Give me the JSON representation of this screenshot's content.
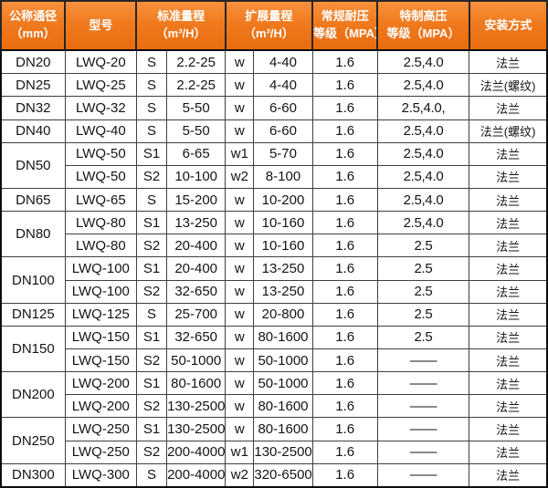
{
  "colors": {
    "header_orange": "#f07a1e",
    "header_text": "#ffffff",
    "body_text": "#141414",
    "grid_line": "#3f3f3f"
  },
  "table": {
    "header": {
      "diameter": [
        "公称通径",
        "（mm）"
      ],
      "model": [
        "型号"
      ],
      "standard_range": [
        "标准量程",
        "（m³/H）"
      ],
      "extended_range": [
        "扩展量程",
        "（m³/H）"
      ],
      "normal_pressure": [
        "常规耐压",
        "等级（MPA）"
      ],
      "high_pressure": [
        "特制高压",
        "等级（MPA）"
      ],
      "installation": [
        "安装方式"
      ]
    },
    "rows": [
      {
        "dn": "DN20",
        "dn_span": 1,
        "model": "LWQ-20",
        "std_label": "S",
        "std_range": "2.2-25",
        "ext_label": "w",
        "ext_range": "4-40",
        "normal_mpa": "1.6",
        "high_mpa": "2.5,4.0",
        "install": "法兰"
      },
      {
        "dn": "DN25",
        "dn_span": 1,
        "model": "LWQ-25",
        "std_label": "S",
        "std_range": "2.2-25",
        "ext_label": "w",
        "ext_range": "4-40",
        "normal_mpa": "1.6",
        "high_mpa": "2.5,4.0",
        "install": "法兰(螺纹)"
      },
      {
        "dn": "DN32",
        "dn_span": 1,
        "model": "LWQ-32",
        "std_label": "S",
        "std_range": "5-50",
        "ext_label": "w",
        "ext_range": "6-60",
        "normal_mpa": "1.6",
        "high_mpa": "2.5,4.0,",
        "install": "法兰"
      },
      {
        "dn": "DN40",
        "dn_span": 1,
        "model": "LWQ-40",
        "std_label": "S",
        "std_range": "5-50",
        "ext_label": "w",
        "ext_range": "6-60",
        "normal_mpa": "1.6",
        "high_mpa": "2.5,4.0",
        "install": "法兰(螺纹)"
      },
      {
        "dn": "DN50",
        "dn_span": 2,
        "model": "LWQ-50",
        "std_label": "S1",
        "std_range": "6-65",
        "ext_label": "w1",
        "ext_range": "5-70",
        "normal_mpa": "1.6",
        "high_mpa": "2.5,4.0",
        "install": "法兰"
      },
      {
        "dn": null,
        "model": "LWQ-50",
        "std_label": "S2",
        "std_range": "10-100",
        "ext_label": "w2",
        "ext_range": "8-100",
        "normal_mpa": "1.6",
        "high_mpa": "2.5,4.0",
        "install": "法兰"
      },
      {
        "dn": "DN65",
        "dn_span": 1,
        "model": "LWQ-65",
        "std_label": "S",
        "std_range": "15-200",
        "ext_label": "w",
        "ext_range": "10-200",
        "normal_mpa": "1.6",
        "high_mpa": "2.5,4.0",
        "install": "法兰"
      },
      {
        "dn": "DN80",
        "dn_span": 2,
        "model": "LWQ-80",
        "std_label": "S1",
        "std_range": "13-250",
        "ext_label": "w",
        "ext_range": "10-160",
        "normal_mpa": "1.6",
        "high_mpa": "2.5,4.0",
        "install": "法兰"
      },
      {
        "dn": null,
        "model": "LWQ-80",
        "std_label": "S2",
        "std_range": "20-400",
        "ext_label": "w",
        "ext_range": "10-160",
        "normal_mpa": "1.6",
        "high_mpa": "2.5",
        "install": "法兰"
      },
      {
        "dn": "DN100",
        "dn_span": 2,
        "model": "LWQ-100",
        "std_label": "S1",
        "std_range": "20-400",
        "ext_label": "w",
        "ext_range": "13-250",
        "normal_mpa": "1.6",
        "high_mpa": "2.5",
        "install": "法兰"
      },
      {
        "dn": null,
        "model": "LWQ-100",
        "std_label": "S2",
        "std_range": "32-650",
        "ext_label": "w",
        "ext_range": "13-250",
        "normal_mpa": "1.6",
        "high_mpa": "2.5",
        "install": "法兰"
      },
      {
        "dn": "DN125",
        "dn_span": 1,
        "model": "LWQ-125",
        "std_label": "S",
        "std_range": "25-700",
        "ext_label": "w",
        "ext_range": "20-800",
        "normal_mpa": "1.6",
        "high_mpa": "2.5",
        "install": "法兰"
      },
      {
        "dn": "DN150",
        "dn_span": 2,
        "model": "LWQ-150",
        "std_label": "S1",
        "std_range": "32-650",
        "ext_label": "w",
        "ext_range": "80-1600",
        "normal_mpa": "1.6",
        "high_mpa": "2.5",
        "install": "法兰"
      },
      {
        "dn": null,
        "model": "LWQ-150",
        "std_label": "S2",
        "std_range": "50-1000",
        "ext_label": "w",
        "ext_range": "50-1000",
        "normal_mpa": "1.6",
        "high_mpa": "——",
        "install": "法兰"
      },
      {
        "dn": "DN200",
        "dn_span": 2,
        "model": "LWQ-200",
        "std_label": "S1",
        "std_range": "80-1600",
        "ext_label": "w",
        "ext_range": "50-1000",
        "normal_mpa": "1.6",
        "high_mpa": "——",
        "install": "法兰"
      },
      {
        "dn": null,
        "model": "LWQ-200",
        "std_label": "S2",
        "std_range": "130-2500",
        "ext_label": "w",
        "ext_range": "80-1600",
        "normal_mpa": "1.6",
        "high_mpa": "——",
        "install": "法兰"
      },
      {
        "dn": "DN250",
        "dn_span": 2,
        "model": "LWQ-250",
        "std_label": "S1",
        "std_range": "130-2500",
        "ext_label": "w",
        "ext_range": "80-1600",
        "normal_mpa": "1.6",
        "high_mpa": "——",
        "install": "法兰"
      },
      {
        "dn": null,
        "model": "LWQ-250",
        "std_label": "S2",
        "std_range": "200-4000",
        "ext_label": "w1",
        "ext_range": "130-2500",
        "normal_mpa": "1.6",
        "high_mpa": "——",
        "install": "法兰"
      },
      {
        "dn": "DN300",
        "dn_span": 1,
        "model": "LWQ-300",
        "std_label": "S",
        "std_range": "200-4000",
        "ext_label": "w2",
        "ext_range": "320-6500",
        "normal_mpa": "1.6",
        "high_mpa": "——",
        "install": "法兰"
      }
    ]
  }
}
